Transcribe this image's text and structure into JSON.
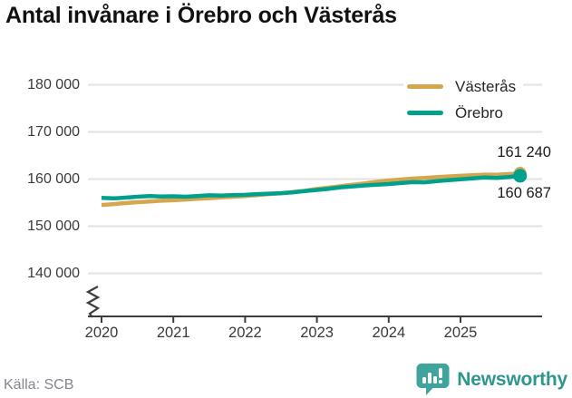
{
  "chart": {
    "title": "Antal invånare i Örebro och Västerås",
    "source": "Källa: SCB"
  },
  "footer": {
    "brand": "Newsworthy"
  },
  "colors": {
    "vasteras": "#d6a64e",
    "orebro": "#00a18c",
    "grid": "#e2e2e2",
    "axis": "#3d3d3d",
    "brand_teal": "#3fa49c",
    "brand_text": "#2f968e"
  },
  "chart_data": {
    "type": "line",
    "title": "Antal invånare i Örebro och Västerås",
    "source": "Källa: SCB",
    "xlabel": "",
    "ylabel": "",
    "grid": "horizontal",
    "legend_position": "top-right",
    "axis_break": true,
    "ylim_display": [
      137000,
      183000
    ],
    "x_ticks": [
      {
        "label": "2020",
        "value": 2020
      },
      {
        "label": "2021",
        "value": 2021
      },
      {
        "label": "2022",
        "value": 2022
      },
      {
        "label": "2023",
        "value": 2023
      },
      {
        "label": "2024",
        "value": 2024
      },
      {
        "label": "2025",
        "value": 2025
      }
    ],
    "y_ticks": [
      {
        "label": "180 000",
        "value": 180000
      },
      {
        "label": "170 000",
        "value": 170000
      },
      {
        "label": "160 000",
        "value": 160000
      },
      {
        "label": "150 000",
        "value": 150000
      },
      {
        "label": "140 000",
        "value": 140000
      }
    ],
    "x": [
      2020.0,
      2020.17,
      2020.33,
      2020.5,
      2020.67,
      2020.83,
      2021.0,
      2021.17,
      2021.33,
      2021.5,
      2021.67,
      2021.83,
      2022.0,
      2022.17,
      2022.33,
      2022.5,
      2022.67,
      2022.83,
      2023.0,
      2023.17,
      2023.33,
      2023.5,
      2023.67,
      2023.83,
      2024.0,
      2024.17,
      2024.33,
      2024.5,
      2024.67,
      2024.83,
      2025.0,
      2025.17,
      2025.33,
      2025.5,
      2025.67,
      2025.83
    ],
    "series": [
      {
        "name": "Västerås",
        "color": "#d6a64e",
        "end_label": "161 240",
        "final_value": 161240,
        "values": [
          154500,
          154700,
          154900,
          155100,
          155250,
          155400,
          155500,
          155650,
          155800,
          155950,
          156100,
          156250,
          156400,
          156600,
          156800,
          157000,
          157250,
          157500,
          157900,
          158200,
          158500,
          158800,
          159100,
          159400,
          159700,
          159900,
          160100,
          160250,
          160400,
          160550,
          160700,
          160800,
          160950,
          160900,
          161050,
          161240
        ]
      },
      {
        "name": "Örebro",
        "color": "#00a18c",
        "end_label": "160 687",
        "final_value": 160687,
        "values": [
          156000,
          155900,
          156050,
          156250,
          156400,
          156300,
          156350,
          156250,
          156400,
          156550,
          156500,
          156600,
          156650,
          156800,
          156900,
          157000,
          157200,
          157450,
          157700,
          157950,
          158250,
          158450,
          158650,
          158800,
          158950,
          159150,
          159350,
          159300,
          159550,
          159750,
          159950,
          160150,
          160350,
          160250,
          160450,
          160687
        ]
      }
    ]
  }
}
